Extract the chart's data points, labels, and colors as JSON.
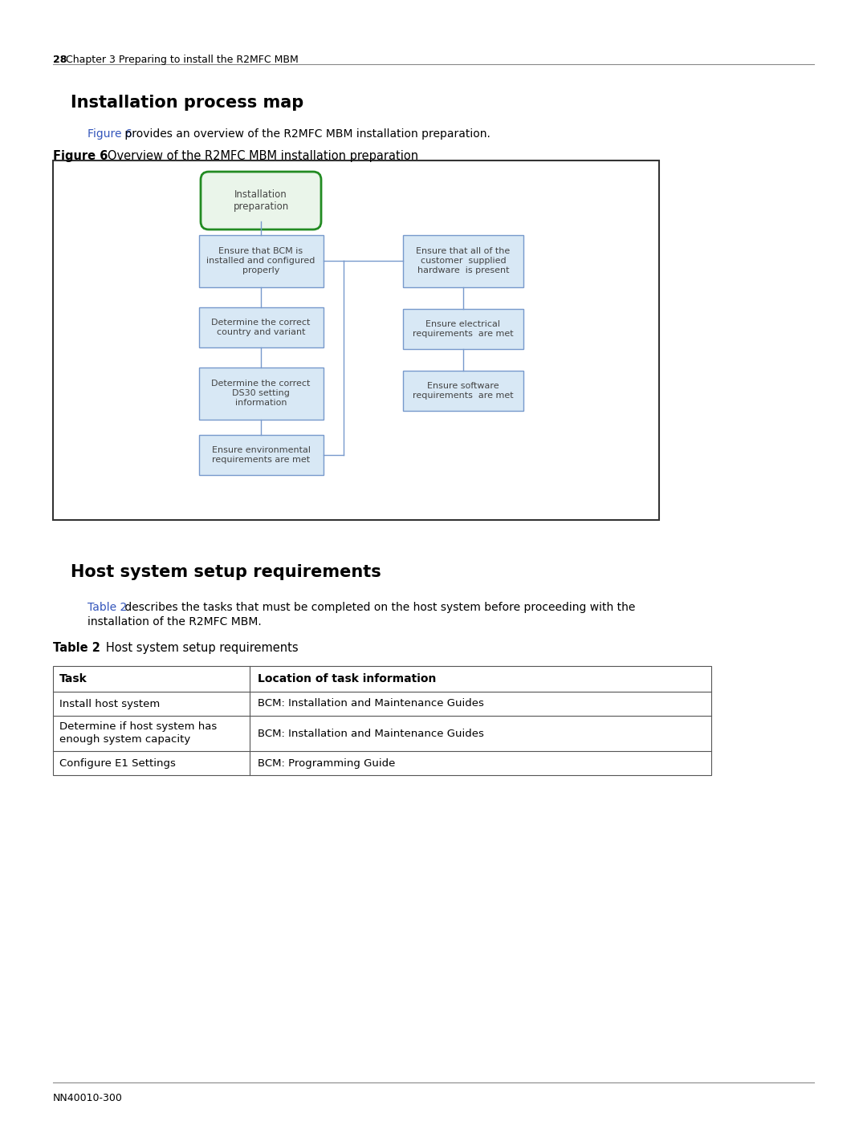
{
  "page_header_bold": "28",
  "page_header_rest": " Chapter 3 Preparing to install the R2MFC MBM",
  "section1_title": "Installation process map",
  "figure_ref_text": "Figure 6",
  "figure_ref_color": "#3355BB",
  "figure_caption_text": " provides an overview of the R2MFC MBM installation preparation.",
  "figure_label_bold": "Figure 6",
  "figure_label_rest": "   Overview of the R2MFC MBM installation preparation",
  "section2_title": "Host system setup requirements",
  "table_ref_text": "Table 2",
  "table_ref_color": "#3355BB",
  "table_caption_line1": " describes the tasks that must be completed on the host system before proceeding with the",
  "table_caption_line2": "installation of the R2MFC MBM.",
  "table_label_bold": "Table 2",
  "table_label_rest": "   Host system setup requirements",
  "flowchart_top_text": [
    "Installation",
    "preparation"
  ],
  "flowchart_top_border": "#228B22",
  "flowchart_top_fill": "#EAF5EA",
  "flowchart_box_fill": "#D8E8F5",
  "flowchart_box_border": "#7799CC",
  "line_color": "#7799CC",
  "left_boxes": [
    [
      "Ensure that BCM is",
      "installed and configured",
      "properly"
    ],
    [
      "Determine the correct",
      "country and variant"
    ],
    [
      "Determine the correct",
      "DS30 setting",
      "information"
    ],
    [
      "Ensure environmental",
      "requirements are met"
    ]
  ],
  "right_boxes": [
    [
      "Ensure that all of the",
      "customer  supplied",
      "hardware  is present"
    ],
    [
      "Ensure electrical",
      "requirements  are met"
    ],
    [
      "Ensure software",
      "requirements  are met"
    ]
  ],
  "table_headers": [
    "Task",
    "Location of task information"
  ],
  "table_rows": [
    [
      "Install host system",
      "BCM: Installation and Maintenance Guides"
    ],
    [
      "Determine if host system has\nenough system capacity",
      "BCM: Installation and Maintenance Guides"
    ],
    [
      "Configure E1 Settings",
      "BCM: Programming Guide"
    ]
  ],
  "bg_color": "#FFFFFF",
  "footer_text": "NN40010-300"
}
